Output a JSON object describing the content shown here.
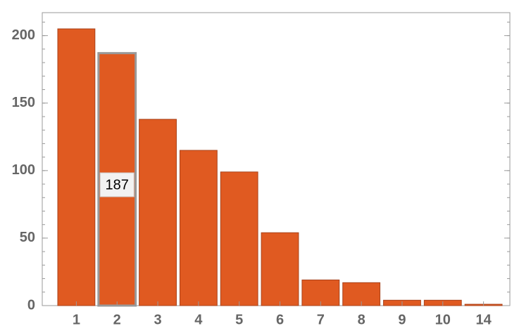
{
  "chart_data": {
    "type": "bar",
    "categories": [
      "1",
      "2",
      "3",
      "4",
      "5",
      "6",
      "7",
      "8",
      "9",
      "10",
      "14"
    ],
    "values": [
      205,
      187,
      138,
      115,
      99,
      54,
      19,
      17,
      4,
      4,
      1
    ],
    "color": "#e05a21",
    "ylim": [
      0,
      217
    ],
    "yticks": [
      0,
      50,
      100,
      150,
      200
    ]
  }
}
